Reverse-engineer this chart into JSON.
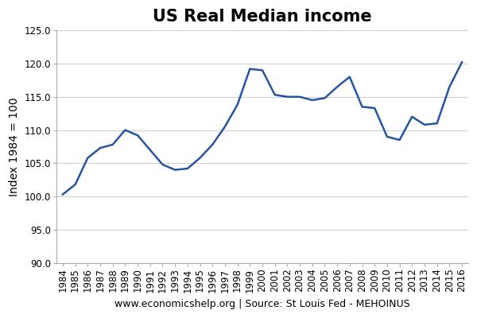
{
  "years": [
    1984,
    1985,
    1986,
    1987,
    1988,
    1989,
    1990,
    1991,
    1992,
    1993,
    1994,
    1995,
    1996,
    1997,
    1998,
    1999,
    2000,
    2001,
    2002,
    2003,
    2004,
    2005,
    2006,
    2007,
    2008,
    2009,
    2010,
    2011,
    2012,
    2013,
    2014,
    2015,
    2016
  ],
  "values": [
    100.3,
    101.8,
    105.8,
    107.3,
    107.8,
    110.0,
    109.2,
    107.0,
    104.8,
    104.0,
    104.2,
    105.8,
    107.8,
    110.5,
    113.8,
    119.2,
    119.0,
    115.3,
    115.0,
    115.0,
    114.5,
    114.8,
    116.5,
    118.0,
    113.5,
    113.3,
    109.0,
    108.5,
    112.0,
    110.8,
    111.0,
    116.5,
    120.2
  ],
  "line_color": "#2655a3",
  "line_width": 1.8,
  "title": "US Real Median income",
  "title_fontsize": 15,
  "ylabel": "Index 1984 = 100",
  "ylabel_fontsize": 10,
  "xlabel": "www.economicshelp.org | Source: St Louis Fed - MEHOINUS",
  "xlabel_fontsize": 9,
  "ylim": [
    90.0,
    125.0
  ],
  "yticks": [
    90.0,
    95.0,
    100.0,
    105.0,
    110.0,
    115.0,
    120.0,
    125.0
  ],
  "ytick_labels": [
    "90.0",
    "95.0",
    "100.0",
    "105.0",
    "110.0",
    "115.0",
    "120.0",
    "125.0"
  ],
  "background_color": "#ffffff",
  "grid_color": "#d0d0d0",
  "tick_fontsize": 8.5
}
